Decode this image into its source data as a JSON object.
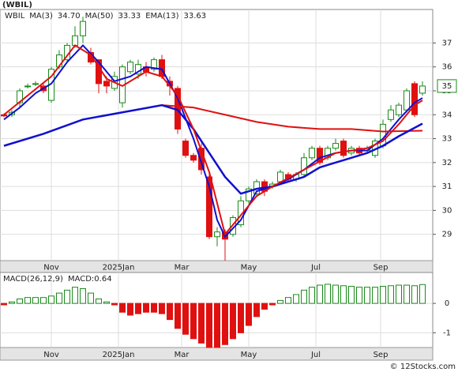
{
  "chart_data": [
    {
      "type": "candlestick",
      "title": "(WBIL)",
      "symbol": "WBIL",
      "open": [
        34.0,
        34.0,
        34.5,
        35.2,
        35.3,
        35.2,
        34.6,
        36.0,
        36.3,
        36.9,
        37.3,
        36.6,
        36.3,
        35.4,
        35.1,
        34.5,
        35.8,
        35.7,
        36.0,
        35.9,
        36.3,
        35.4,
        35.1,
        32.9,
        32.3,
        32.6,
        31.4,
        28.9,
        29.1,
        29.0,
        29.4,
        30.4,
        30.7,
        31.2,
        31.0,
        31.2,
        31.5,
        31.3,
        31.5,
        32.2,
        32.6,
        32.2,
        32.6,
        32.9,
        32.4,
        32.6,
        32.5,
        32.3,
        32.7,
        33.8,
        34.0,
        34.2,
        35.3,
        34.9
      ],
      "high": [
        34.05,
        34.2,
        35.1,
        35.3,
        35.4,
        35.3,
        36.0,
        36.7,
        37.0,
        37.7,
        38.1,
        36.8,
        36.3,
        35.6,
        35.8,
        36.1,
        36.3,
        36.3,
        36.2,
        36.4,
        36.5,
        35.6,
        35.2,
        33.0,
        32.4,
        32.8,
        31.6,
        29.3,
        29.2,
        29.8,
        30.6,
        31.0,
        31.3,
        31.3,
        31.2,
        31.7,
        31.6,
        31.6,
        32.4,
        32.7,
        32.7,
        32.7,
        33.0,
        33.0,
        32.7,
        32.7,
        32.7,
        33.0,
        33.8,
        34.4,
        34.5,
        35.1,
        35.4,
        35.4
      ],
      "low": [
        33.9,
        33.9,
        34.3,
        35.1,
        35.2,
        34.9,
        34.5,
        35.9,
        36.2,
        36.8,
        37.0,
        36.1,
        34.9,
        34.9,
        35.0,
        34.3,
        35.7,
        35.5,
        35.6,
        35.8,
        35.5,
        34.8,
        33.2,
        32.2,
        32.0,
        31.5,
        28.8,
        28.5,
        27.9,
        28.9,
        29.3,
        30.3,
        30.6,
        30.6,
        30.9,
        31.1,
        31.2,
        31.2,
        31.4,
        32.1,
        31.9,
        32.1,
        32.5,
        32.2,
        32.3,
        32.3,
        32.4,
        32.2,
        32.6,
        33.7,
        33.9,
        34.1,
        33.9,
        34.8
      ],
      "close": [
        33.95,
        34.1,
        35.0,
        35.2,
        35.3,
        35.0,
        35.9,
        36.5,
        36.9,
        37.3,
        37.9,
        36.2,
        35.3,
        35.2,
        35.6,
        36.0,
        36.2,
        36.1,
        35.8,
        36.3,
        35.6,
        35.2,
        33.4,
        32.3,
        32.1,
        31.7,
        28.9,
        29.1,
        28.8,
        29.7,
        30.4,
        30.9,
        31.2,
        30.8,
        31.1,
        31.6,
        31.3,
        31.5,
        32.2,
        32.6,
        32.0,
        32.6,
        32.8,
        32.3,
        32.6,
        32.4,
        32.6,
        32.9,
        33.6,
        34.2,
        34.4,
        35.0,
        34.0,
        35.2
      ],
      "up_color": "#1a8a1a",
      "down_color": "#e01010",
      "lines": [
        {
          "name": "MA(3)",
          "legend_value": "34.70",
          "color": "#1010d0",
          "width": 2,
          "x": [
            0,
            2,
            4,
            6,
            8,
            10,
            12,
            14,
            16,
            18,
            20,
            22,
            24,
            26,
            27,
            28,
            30,
            32,
            34,
            36,
            38,
            40,
            42,
            44,
            46,
            48,
            50,
            52,
            53
          ],
          "values": [
            33.8,
            34.3,
            34.9,
            35.3,
            36.2,
            36.9,
            36.2,
            35.4,
            35.6,
            36.0,
            35.9,
            34.7,
            33.0,
            31.0,
            29.6,
            28.9,
            29.6,
            30.8,
            31.0,
            31.3,
            31.7,
            32.2,
            32.4,
            32.5,
            32.5,
            33.0,
            33.8,
            34.5,
            34.7
          ]
        },
        {
          "name": "MA(50)",
          "legend_value": "33.33",
          "color": "#e01010",
          "width": 2,
          "x": [
            20,
            24,
            28,
            32,
            36,
            40,
            44,
            48,
            53
          ],
          "values": [
            34.4,
            34.3,
            34.0,
            33.7,
            33.5,
            33.4,
            33.4,
            33.3,
            33.33
          ]
        },
        {
          "name": "EMA(13)",
          "legend_value": "33.63",
          "color": "#1010d0",
          "width": 2.5,
          "x": [
            0,
            5,
            10,
            15,
            20,
            22,
            24,
            26,
            28,
            30,
            32,
            34,
            36,
            38,
            40,
            42,
            44,
            46,
            48,
            50,
            53
          ],
          "values": [
            32.7,
            33.2,
            33.8,
            34.1,
            34.4,
            34.2,
            33.4,
            32.4,
            31.4,
            30.7,
            30.9,
            31.0,
            31.2,
            31.4,
            31.8,
            32.0,
            32.2,
            32.4,
            32.7,
            33.1,
            33.63
          ]
        },
        {
          "color": "#e01010",
          "width": 2,
          "x": [
            0,
            3,
            6,
            9,
            11,
            13,
            15,
            18,
            20,
            22,
            24,
            26,
            28,
            30,
            32,
            34,
            38,
            42,
            46,
            48,
            50,
            52,
            53
          ],
          "values": [
            34.0,
            34.8,
            35.6,
            36.9,
            36.5,
            35.5,
            35.2,
            35.8,
            35.6,
            34.8,
            33.4,
            31.6,
            29.0,
            29.8,
            30.6,
            31.0,
            31.7,
            32.4,
            32.6,
            32.9,
            33.6,
            34.4,
            34.6
          ]
        }
      ],
      "last_price": {
        "value": 35.2,
        "label": "35"
      },
      "ylim": [
        27.9,
        38.4
      ],
      "yticks": [
        29,
        30,
        31,
        32,
        33,
        34,
        35,
        36,
        37
      ],
      "xlim": [
        -0.5,
        54.3
      ],
      "xticks": [
        {
          "value": 6,
          "label": "Nov"
        },
        {
          "value": 14.5,
          "label": "2025Jan"
        },
        {
          "value": 22.5,
          "label": "Mar"
        },
        {
          "value": 31,
          "label": "May"
        },
        {
          "value": 39.5,
          "label": "Jul"
        },
        {
          "value": 47.7,
          "label": "Sep"
        }
      ],
      "grid": true
    },
    {
      "type": "bar",
      "title": "MACD(26,12,9)",
      "value_text": "MACD:0.64",
      "values": [
        -0.05,
        0.05,
        0.15,
        0.2,
        0.2,
        0.2,
        0.25,
        0.35,
        0.45,
        0.55,
        0.5,
        0.35,
        0.15,
        0.05,
        -0.05,
        -0.3,
        -0.4,
        -0.35,
        -0.3,
        -0.3,
        -0.35,
        -0.55,
        -0.85,
        -1.05,
        -1.2,
        -1.35,
        -1.5,
        -1.5,
        -1.4,
        -1.2,
        -1.0,
        -0.75,
        -0.45,
        -0.2,
        -0.05,
        0.1,
        0.2,
        0.3,
        0.45,
        0.55,
        0.62,
        0.65,
        0.62,
        0.6,
        0.58,
        0.55,
        0.55,
        0.55,
        0.58,
        0.6,
        0.62,
        0.62,
        0.6,
        0.64
      ],
      "up_color": "#1a8a1a",
      "down_color": "#e01010",
      "ylim": [
        -1.5,
        1.05
      ],
      "yticks": [
        -1,
        0
      ],
      "xlim": [
        -0.5,
        54.3
      ],
      "xticks": [
        {
          "value": 6,
          "label": "Nov"
        },
        {
          "value": 14.5,
          "label": "2025Jan"
        },
        {
          "value": 22.5,
          "label": "Mar"
        },
        {
          "value": 31,
          "label": "May"
        },
        {
          "value": 39.5,
          "label": "Jul"
        },
        {
          "value": 47.7,
          "label": "Sep"
        }
      ],
      "grid": true
    }
  ],
  "footer": "© 12Stocks.com"
}
